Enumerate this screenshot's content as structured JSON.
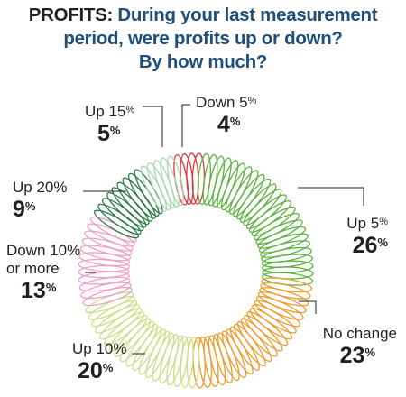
{
  "title": {
    "lead": "PROFITS:",
    "rest1": " During your last measurement",
    "line2": "period, were profits up or down?",
    "line3": "By how much?"
  },
  "chart_data": {
    "type": "pie",
    "style": "donut-coil",
    "start_angle_deg": -11,
    "direction": "clockwise",
    "slices": [
      {
        "key": "down5",
        "label": "Down 5",
        "value": 4,
        "color": "#e0363c"
      },
      {
        "key": "up5",
        "label": "Up 5",
        "value": 26,
        "color": "#5cb23f"
      },
      {
        "key": "nochange",
        "label": "No change",
        "value": 23,
        "color": "#ed9a2a"
      },
      {
        "key": "up10",
        "label": "Up 10%",
        "value": 20,
        "color": "#cddd86"
      },
      {
        "key": "down10",
        "label": "Down 10% or more",
        "value": 13,
        "color": "#ef9fc6"
      },
      {
        "key": "up20",
        "label": "Up 20%",
        "value": 9,
        "color": "#2a7a49"
      },
      {
        "key": "up15",
        "label": "Up 15",
        "value": 5,
        "color": "#a8d8b0"
      }
    ]
  },
  "labels": {
    "down5": {
      "text": "Down 5",
      "sup": "%",
      "value": "4",
      "value_sup": "%"
    },
    "up15": {
      "text": "Up 15",
      "sup": "%",
      "value": "5",
      "value_sup": "%"
    },
    "up20": {
      "text": "Up 20%",
      "value": "9",
      "value_sup": "%"
    },
    "down10": {
      "line1": "Down 10%",
      "line2": "or more",
      "value": "13",
      "value_sup": "%"
    },
    "up10": {
      "text": "Up 10%",
      "value": "20",
      "value_sup": "%"
    },
    "up5": {
      "text": "Up 5",
      "sup": "%",
      "value": "26",
      "value_sup": "%"
    },
    "nochange": {
      "text": "No change",
      "value": "23",
      "value_sup": "%"
    }
  }
}
